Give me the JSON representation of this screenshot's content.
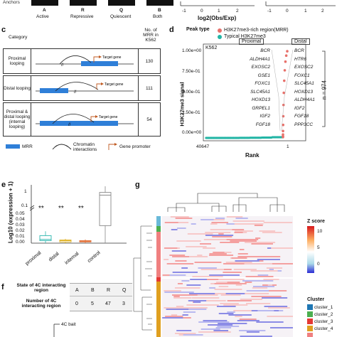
{
  "top_strip": {
    "anchors_label": "Anchors",
    "anchor_letters": [
      "A",
      "R",
      "Q",
      "B"
    ],
    "anchor_names": [
      "Active",
      "Repressive",
      "Quiescent",
      "Both"
    ],
    "axis_ticks": [
      "-1",
      "0",
      "1",
      "2",
      "-1",
      "0",
      "1",
      "2"
    ],
    "axis_label": "log2(Obs/Exp)"
  },
  "panel_c": {
    "letter": "c",
    "category_header": "Category",
    "count_header": "No. of MRR in K562",
    "rows": [
      {
        "category": "Proximal looping",
        "target": "Target gene",
        "count": "130"
      },
      {
        "category": "Distal looping",
        "target": "Target gene",
        "count": "111"
      },
      {
        "category": "Proximal & distal looping (internal looping)",
        "target": "Target gene",
        "count": "54"
      }
    ],
    "legend": {
      "mrr": "MRR",
      "chromatin": "Chromatin interactions",
      "promoter": "Gene promoter"
    }
  },
  "panel_d": {
    "letter": "d",
    "peak_type_label": "Peak type",
    "legend": [
      {
        "name": "H3K27me3-rich region(MRR)",
        "color": "#e8706a"
      },
      {
        "name": "Typical H3K27me3",
        "color": "#22b5a5"
      }
    ],
    "cell_line": "K562",
    "proximal_label": "Proximal",
    "distal_label": "Distal",
    "proximal_genes": [
      "BCR",
      "ALDH4A1",
      "EXOSC2",
      "GSE1",
      "FOXC1",
      "SLC45A1",
      "HOXD13",
      "GRPEL1",
      "IGF2",
      "FGF18"
    ],
    "distal_genes": [
      "BCR",
      "HTR6",
      "EXOSC2",
      "FOXC1",
      "SLC45A1",
      "HOXD13",
      "ALDH4A1",
      "IGF2",
      "FGF18",
      "PPP3CC"
    ],
    "n_label": "n = 974",
    "ylabel": "H3K27me3 signal",
    "xlabel": "Rank",
    "yticks": [
      "1.00e+00",
      "7.50e-01",
      "5.00e-01",
      "2.50e-01",
      "0.00e+00"
    ],
    "xticks": [
      "40647",
      "1"
    ]
  },
  "panel_e": {
    "letter": "e",
    "ylabel": "Log10 (expression + 1)",
    "yticks_top": [
      "1",
      "0.1"
    ],
    "yticks_bottom": [
      "0.05",
      "0.04",
      "0.03",
      "0.02",
      "0.01",
      "0.00"
    ],
    "significance": [
      "**",
      "**",
      "**"
    ],
    "categories": [
      "proximal",
      "distal",
      "internal",
      "control"
    ]
  },
  "panel_f": {
    "letter": "f",
    "row1_label": "State of 4C interacting region",
    "row2_label": "Number of 4C interacting region",
    "states": [
      "A",
      "B",
      "R",
      "Q"
    ],
    "counts": [
      "0",
      "5",
      "47",
      "3"
    ],
    "bait_label": "4C bait"
  },
  "panel_g": {
    "letter": "g",
    "zscore_title": "Z score",
    "zscore_ticks": [
      "10",
      "5",
      "0"
    ],
    "cluster_title": "Cluster",
    "clusters": [
      {
        "name": "cluster_1",
        "color": "#1f77b4"
      },
      {
        "name": "cluster_2",
        "color": "#4caf50"
      },
      {
        "name": "cluster_3",
        "color": "#e53935"
      },
      {
        "name": "cluster_4",
        "color": "#e0a020"
      },
      {
        "name": "cluster_5",
        "color": "#f08080"
      }
    ]
  },
  "chart_data": [
    {
      "type": "scatter",
      "panel": "d",
      "title": "K562",
      "xlabel": "Rank",
      "ylabel": "H3K27me3 signal",
      "ylim": [
        0,
        1.05
      ],
      "x_reversed": true,
      "series": [
        {
          "name": "Typical H3K27me3",
          "values": [
            0.0,
            0.0,
            0.0,
            0.001,
            0.002,
            0.004,
            0.008
          ]
        },
        {
          "name": "H3K27me3-rich region(MRR)",
          "values": [
            0.01,
            0.02,
            0.04,
            0.08,
            0.15,
            0.25,
            0.38,
            0.52,
            0.66,
            0.78,
            0.88,
            0.95,
            1.0
          ]
        }
      ]
    },
    {
      "type": "bar",
      "panel": "e",
      "title": "",
      "xlabel": "",
      "ylabel": "Log10 (expression + 1)",
      "categories": [
        "proximal",
        "distal",
        "internal",
        "control"
      ],
      "boxes": [
        {
          "name": "proximal",
          "color": "#2fb8b0",
          "q1": 0.004,
          "median": 0.006,
          "q3": 0.012,
          "whisker_low": 0.0,
          "whisker_high": 0.019
        },
        {
          "name": "distal",
          "color": "#e0b020",
          "q1": 0.002,
          "median": 0.004,
          "q3": 0.005,
          "whisker_low": 0.0,
          "whisker_high": 0.007
        },
        {
          "name": "internal",
          "color": "#e06a30",
          "q1": 0.002,
          "median": 0.003,
          "q3": 0.004,
          "whisker_low": 0.0,
          "whisker_high": 0.006
        },
        {
          "name": "control",
          "color": "#888888",
          "q1": 0.028,
          "median": 0.4,
          "q3": 0.6,
          "whisker_low": 0.0,
          "whisker_high": 1.5
        }
      ]
    }
  ]
}
